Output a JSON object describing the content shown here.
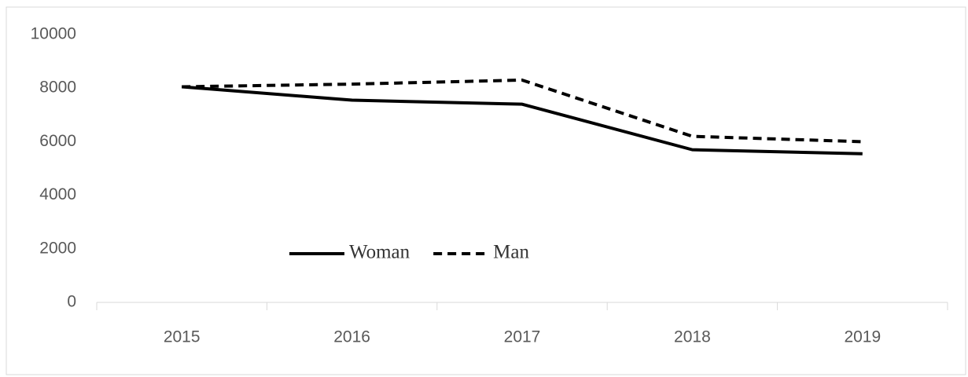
{
  "chart_data": {
    "type": "line",
    "categories": [
      "2015",
      "2016",
      "2017",
      "2018",
      "2019"
    ],
    "series": [
      {
        "name": "Woman",
        "color": "#000000",
        "dash": "solid",
        "values": [
          8050,
          7550,
          7400,
          5700,
          5550
        ]
      },
      {
        "name": "Man",
        "color": "#000000",
        "dash": "dashed",
        "values": [
          8050,
          8150,
          8300,
          6200,
          6000
        ]
      }
    ],
    "ylim": [
      0,
      10000
    ],
    "yticks": [
      0,
      2000,
      4000,
      6000,
      8000,
      10000
    ],
    "grid": false
  }
}
